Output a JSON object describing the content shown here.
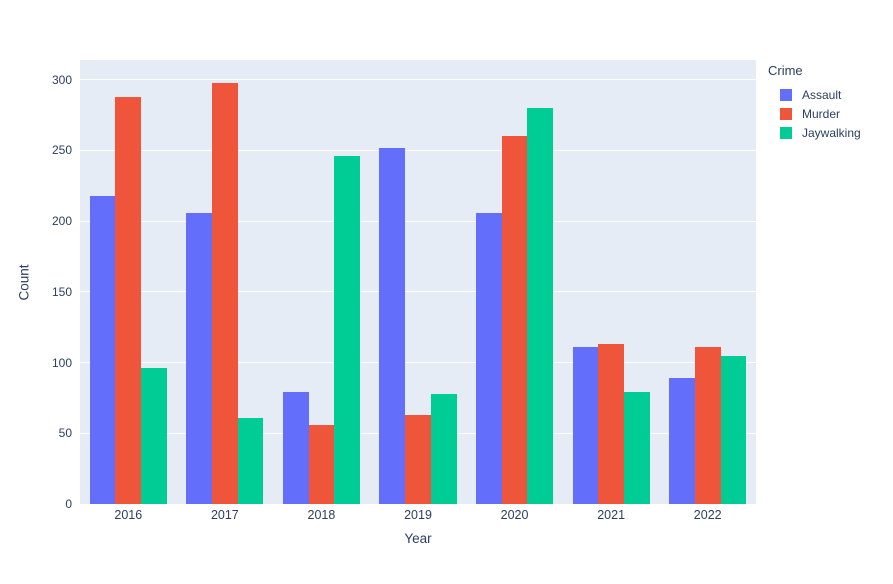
{
  "chart_data": {
    "type": "bar",
    "mode": "grouped",
    "title": "",
    "xlabel": "Year",
    "ylabel": "Count",
    "categories": [
      "2016",
      "2017",
      "2018",
      "2019",
      "2020",
      "2021",
      "2022"
    ],
    "series": [
      {
        "name": "Assault",
        "color": "#636EFA",
        "values": [
          218,
          206,
          79,
          252,
          206,
          111,
          89
        ]
      },
      {
        "name": "Murder",
        "color": "#EF553B",
        "values": [
          288,
          298,
          56,
          63,
          260,
          113,
          111
        ]
      },
      {
        "name": "Jaywalking",
        "color": "#00CC96",
        "values": [
          96,
          61,
          246,
          78,
          280,
          79,
          105
        ]
      }
    ],
    "yticks": [
      0,
      50,
      100,
      150,
      200,
      250,
      300
    ],
    "ylim": [
      0,
      314
    ],
    "legend_title": "Crime",
    "legend_position": "right",
    "grid": true,
    "colors": {
      "plot_background": "#E5ECF6",
      "gridline": "#FFFFFF",
      "text": "#2A3F5F",
      "figure_background": "#FFFFFF"
    }
  }
}
